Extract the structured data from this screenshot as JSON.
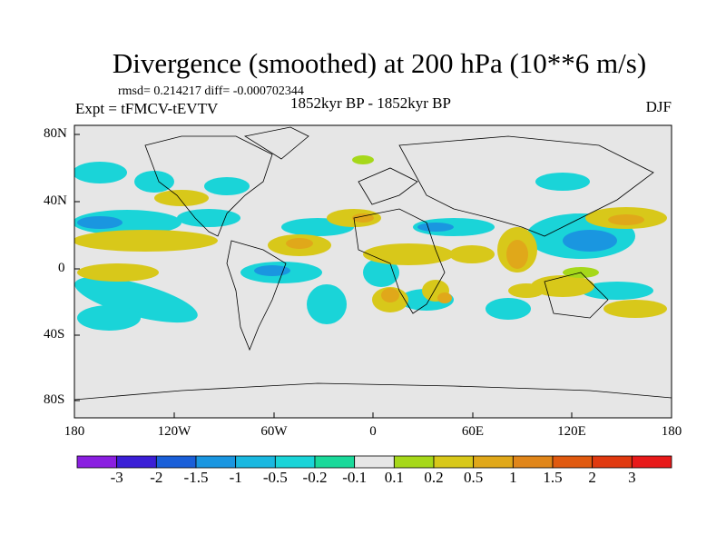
{
  "title": "Divergence (smoothed) at 200 hPa (10**6 m/s)",
  "stats": "rmsd= 0.214217 diff= -0.000702344",
  "experiment": "Expt = tFMCV-tEVTV",
  "period": "1852kyr BP - 1852kyr BP",
  "season": "DJF",
  "lat_labels": [
    "80N",
    "40N",
    "0",
    "40S",
    "80S"
  ],
  "lon_labels": [
    "180",
    "120W",
    "60W",
    "0",
    "60E",
    "120E",
    "180"
  ],
  "colorbar": {
    "labels": [
      "-3",
      "-2",
      "-1.5",
      "-1",
      "-0.5",
      "-0.2",
      "-0.1",
      "0.1",
      "0.2",
      "0.5",
      "1",
      "1.5",
      "2",
      "3"
    ],
    "colors": [
      "#8a1fe0",
      "#3b1fd6",
      "#1a5fd8",
      "#1a96e0",
      "#1ab8e0",
      "#1ad4d8",
      "#1ad99a",
      "#e6e6e6",
      "#a6d81a",
      "#d8c81a",
      "#e0a81a",
      "#e0861a",
      "#e05a10",
      "#e03a10",
      "#e81a1a"
    ]
  }
}
